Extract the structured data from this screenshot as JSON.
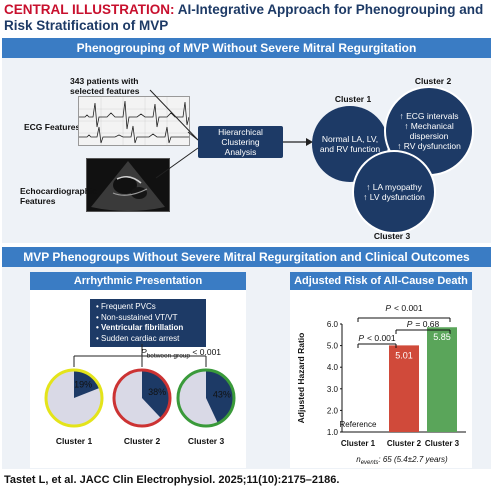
{
  "title": {
    "prefix": "CENTRAL ILLUSTRATION:",
    "text": "AI-Integrative Approach for Phenogrouping and Risk Stratification of MVP"
  },
  "top_banner": "Phenogrouping of MVP Without Severe Mitral Regurgitation",
  "patients_line1": "343 patients with",
  "patients_line2": "selected features",
  "ecg_label": "ECG Features",
  "echo_label_line1": "Echocardiographic",
  "echo_label_line2": "Features",
  "hc_line1": "Hierarchical Clustering",
  "hc_line2": "Analysis",
  "cluster1": {
    "label": "Cluster 1",
    "line1": "Normal LA, LV,",
    "line2": "and RV function"
  },
  "cluster2": {
    "label": "Cluster 2",
    "line1": "↑ ECG intervals",
    "line2": "↑ Mechanical",
    "line3": "dispersion",
    "line4": "↑ RV dysfunction"
  },
  "cluster3": {
    "label": "Cluster 3",
    "line1": "↑ LA myopathy",
    "line2": "↑ LV dysfunction"
  },
  "bottom_banner": "MVP Phenogroups Without Severe Mitral Regurgitation and Clinical Outcomes",
  "arrhythmic": {
    "title": "Arrhythmic Presentation",
    "bullets": [
      "• Frequent PVCs",
      "• Non-sustained VT/VT",
      "• Ventricular fibrillation",
      "• Sudden cardiac arrest"
    ],
    "p_prefix": "P",
    "p_sub": "between-group",
    "p_value": "< 0.001",
    "pies": [
      {
        "label": "Cluster 1",
        "percent": 19,
        "pct_text": "19%",
        "ring": "#e4e41a"
      },
      {
        "label": "Cluster 2",
        "percent": 38,
        "pct_text": "38%",
        "ring": "#cc3333"
      },
      {
        "label": "Cluster 3",
        "percent": 43,
        "pct_text": "43%",
        "ring": "#3a9a3a"
      }
    ]
  },
  "hazard": {
    "title": "Adjusted Risk of All-Cause Death",
    "p_top": "< 0.001",
    "p_mid1": "< 0.001",
    "p_mid2": "= 0.68",
    "p_letter": "P",
    "footnote_prefix": "n",
    "footnote_sub": "events",
    "footnote_rest": ": 65 (5.4±2.7 years)"
  },
  "chart_data": {
    "type": "bar",
    "categories": [
      "Cluster 1",
      "Cluster 2",
      "Cluster 3"
    ],
    "values": [
      1.0,
      5.01,
      5.85
    ],
    "bar_labels": [
      "Reference",
      "5.01",
      "5.85"
    ],
    "colors": [
      "#ffffff",
      "#d04a3a",
      "#5aa55a"
    ],
    "ylabel": "Adjusted Hazard Ratio",
    "ylim": [
      1.0,
      6.0
    ],
    "yticks": [
      "1.0",
      "2.0",
      "3.0",
      "4.0",
      "5.0",
      "6.0"
    ]
  },
  "footer": "Tastet L, et al. JACC Clin Electrophysiol. 2025;11(10):2175–2186."
}
